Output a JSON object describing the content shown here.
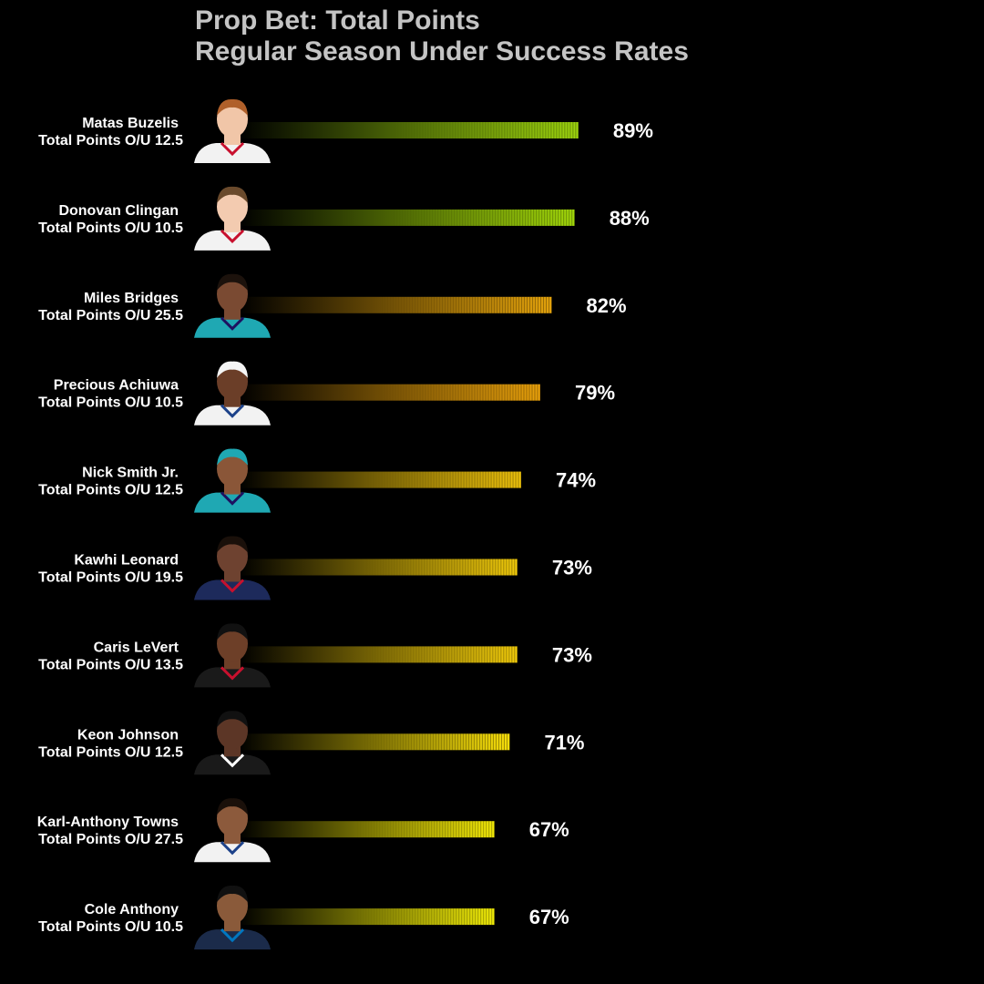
{
  "title_line1": "Prop Bet: Total Points",
  "title_line2": "Regular Season Under Success Rates",
  "chart_data": {
    "type": "bar",
    "orientation": "horizontal",
    "title": "Prop Bet: Total Points Regular Season Under Success Rates",
    "xlim": [
      0,
      100
    ],
    "grid": false,
    "legend": "none",
    "value_suffix": "%",
    "categories": [
      {
        "player": "Matas Buzelis",
        "line": "Total Points O/U 12.5"
      },
      {
        "player": "Donovan Clingan",
        "line": "Total Points O/U 10.5"
      },
      {
        "player": "Miles Bridges",
        "line": "Total Points O/U 25.5"
      },
      {
        "player": "Precious Achiuwa",
        "line": "Total Points O/U 10.5"
      },
      {
        "player": "Nick Smith Jr.",
        "line": "Total Points O/U 12.5"
      },
      {
        "player": "Kawhi Leonard",
        "line": "Total Points O/U 19.5"
      },
      {
        "player": "Caris LeVert",
        "line": "Total Points O/U 13.5"
      },
      {
        "player": "Keon Johnson",
        "line": "Total Points O/U 12.5"
      },
      {
        "player": "Karl-Anthony Towns",
        "line": "Total Points O/U 27.5"
      },
      {
        "player": "Cole Anthony",
        "line": "Total Points O/U 10.5"
      }
    ],
    "values": [
      89,
      88,
      82,
      79,
      74,
      73,
      73,
      71,
      67,
      67
    ],
    "bar_colors": [
      "#9ed60e",
      "#a2d80a",
      "#e6a40c",
      "#eba20b",
      "#f0c40c",
      "#f2cb0b",
      "#f3cd0b",
      "#f6dd0a",
      "#f4ea08",
      "#f1ec08"
    ]
  },
  "headshots": [
    {
      "icon": "player-headshot",
      "jersey": "#f2f2f2",
      "trim": "#c8102e",
      "skin": "#f1c6a8",
      "hair": "#b0602a"
    },
    {
      "icon": "player-headshot",
      "jersey": "#f2f2f2",
      "trim": "#c8102e",
      "skin": "#f3cbb0",
      "hair": "#6a4a2c"
    },
    {
      "icon": "player-headshot",
      "jersey": "#1fa8b3",
      "trim": "#1d1160",
      "skin": "#7a4a32",
      "hair": "#1c120c"
    },
    {
      "icon": "player-headshot",
      "jersey": "#f2f2f2",
      "trim": "#1d428a",
      "skin": "#6b3e28",
      "hair": "#f5f5f5"
    },
    {
      "icon": "player-headshot",
      "jersey": "#1fa8b3",
      "trim": "#1d1160",
      "skin": "#8a5638",
      "hair": "#1fa8b3"
    },
    {
      "icon": "player-headshot",
      "jersey": "#1d2a5b",
      "trim": "#c8102e",
      "skin": "#6e4230",
      "hair": "#1a100a"
    },
    {
      "icon": "player-headshot",
      "jersey": "#1a1a1a",
      "trim": "#c8102e",
      "skin": "#6d3f28",
      "hair": "#111"
    },
    {
      "icon": "player-headshot",
      "jersey": "#1a1a1a",
      "trim": "#ffffff",
      "skin": "#5c3626",
      "hair": "#111"
    },
    {
      "icon": "player-headshot",
      "jersey": "#f2f2f2",
      "trim": "#1d428a",
      "skin": "#8c5a3c",
      "hair": "#1a100a"
    },
    {
      "icon": "player-headshot",
      "jersey": "#1b2b4a",
      "trim": "#0077c0",
      "skin": "#8a5a3a",
      "hair": "#111"
    }
  ]
}
